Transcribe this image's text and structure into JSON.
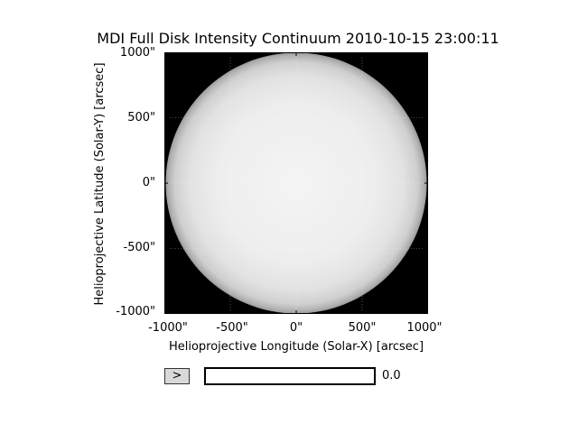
{
  "figure": {
    "title": "MDI Full Disk Intensity Continuum 2010-10-15 23:00:11",
    "xlabel": "Helioprojective Longitude (Solar-X) [arcsec]",
    "ylabel": "Helioprojective Latitude (Solar-Y) [arcsec]",
    "xticks": [
      "-1000\"",
      "-500\"",
      "0\"",
      "500\"",
      "1000\""
    ],
    "yticks": [
      "1000\"",
      "500\"",
      "0\"",
      "-500\"",
      "-1000\""
    ]
  },
  "chart_data": {
    "type": "heatmap",
    "title": "MDI Full Disk Intensity Continuum 2010-10-15 23:00:11",
    "xlabel": "Helioprojective Longitude (Solar-X) [arcsec]",
    "ylabel": "Helioprojective Latitude (Solar-Y) [arcsec]",
    "xlim": [
      -1000,
      1000
    ],
    "ylim": [
      -1000,
      1000
    ],
    "x_tick_values": [
      -1000,
      -500,
      0,
      500,
      1000
    ],
    "y_tick_values": [
      1000,
      500,
      0,
      -500,
      -1000
    ],
    "solar_disk": {
      "center": [
        0,
        0
      ],
      "radius_arcsec": 990
    },
    "colors": {
      "background": "#000000",
      "disk_center": "#f4f4f4",
      "disk_limb": "#9a9a9a"
    },
    "grid": true
  },
  "controls": {
    "play_label": ">",
    "slider_value": "0.0",
    "slider_fraction": 0
  }
}
